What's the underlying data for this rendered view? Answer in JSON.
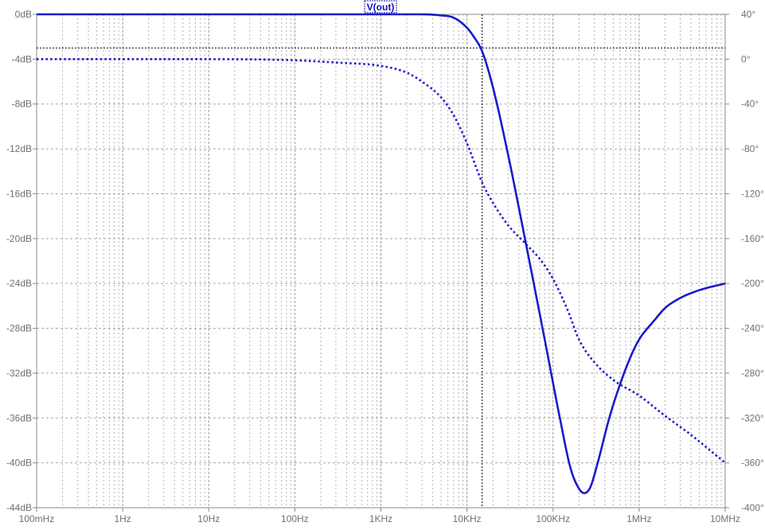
{
  "chart_data": {
    "type": "line",
    "trace_label": "V(out)",
    "x_scale": "log",
    "x_range_hz": [
      0.1,
      10000000
    ],
    "x_ticks": [
      {
        "hz": 0.1,
        "label": "100mHz"
      },
      {
        "hz": 1,
        "label": "1Hz"
      },
      {
        "hz": 10,
        "label": "10Hz"
      },
      {
        "hz": 100,
        "label": "100Hz"
      },
      {
        "hz": 1000,
        "label": "1KHz"
      },
      {
        "hz": 10000,
        "label": "10KHz"
      },
      {
        "hz": 100000,
        "label": "100KHz"
      },
      {
        "hz": 1000000,
        "label": "1MHz"
      },
      {
        "hz": 10000000,
        "label": "10MHz"
      }
    ],
    "y_left_range_db": [
      -44,
      0
    ],
    "y_left_ticks": [
      "0dB",
      "-4dB",
      "-8dB",
      "-12dB",
      "-16dB",
      "-20dB",
      "-24dB",
      "-28dB",
      "-32dB",
      "-36dB",
      "-40dB",
      "-44dB"
    ],
    "y_right_range_deg": [
      -400,
      40
    ],
    "y_right_ticks": [
      "40°",
      "0°",
      "-40°",
      "-80°",
      "-120°",
      "-160°",
      "-200°",
      "-240°",
      "-280°",
      "-320°",
      "-360°",
      "-400°"
    ],
    "grid": true,
    "cursor": {
      "hz": 15000,
      "db": -3
    },
    "series": [
      {
        "style": "solid",
        "axis": "magnitude_db",
        "color": "#1a1acc",
        "points": [
          [
            0.1,
            0
          ],
          [
            1,
            0
          ],
          [
            10,
            0
          ],
          [
            100,
            0
          ],
          [
            1000,
            0
          ],
          [
            3000,
            0
          ],
          [
            5000,
            -0.1
          ],
          [
            7000,
            -0.3
          ],
          [
            10000,
            -1.2
          ],
          [
            12000,
            -2
          ],
          [
            15000,
            -3.3
          ],
          [
            20000,
            -6.5
          ],
          [
            30000,
            -12.5
          ],
          [
            50000,
            -21
          ],
          [
            80000,
            -29
          ],
          [
            120000,
            -36
          ],
          [
            160000,
            -40.5
          ],
          [
            200000,
            -42.3
          ],
          [
            230000,
            -42.7
          ],
          [
            270000,
            -42.2
          ],
          [
            330000,
            -40
          ],
          [
            450000,
            -36
          ],
          [
            600000,
            -33
          ],
          [
            800000,
            -30.5
          ],
          [
            1000000,
            -29
          ],
          [
            1500000,
            -27.3
          ],
          [
            2000000,
            -26.2
          ],
          [
            3000000,
            -25.3
          ],
          [
            5000000,
            -24.6
          ],
          [
            10000000,
            -24
          ]
        ]
      },
      {
        "style": "dotted",
        "axis": "phase_deg",
        "color": "#1a1acc",
        "points": [
          [
            0.1,
            0
          ],
          [
            1,
            0
          ],
          [
            10,
            0
          ],
          [
            100,
            -1
          ],
          [
            300,
            -3
          ],
          [
            1000,
            -6
          ],
          [
            2000,
            -12
          ],
          [
            3000,
            -20
          ],
          [
            5000,
            -34
          ],
          [
            7000,
            -50
          ],
          [
            10000,
            -75
          ],
          [
            15000,
            -110
          ],
          [
            20000,
            -128
          ],
          [
            30000,
            -148
          ],
          [
            50000,
            -166
          ],
          [
            70000,
            -178
          ],
          [
            100000,
            -196
          ],
          [
            150000,
            -225
          ],
          [
            200000,
            -250
          ],
          [
            300000,
            -270
          ],
          [
            500000,
            -286
          ],
          [
            1000000,
            -300
          ],
          [
            2000000,
            -318
          ],
          [
            4000000,
            -335
          ],
          [
            10000000,
            -360
          ]
        ]
      }
    ]
  }
}
